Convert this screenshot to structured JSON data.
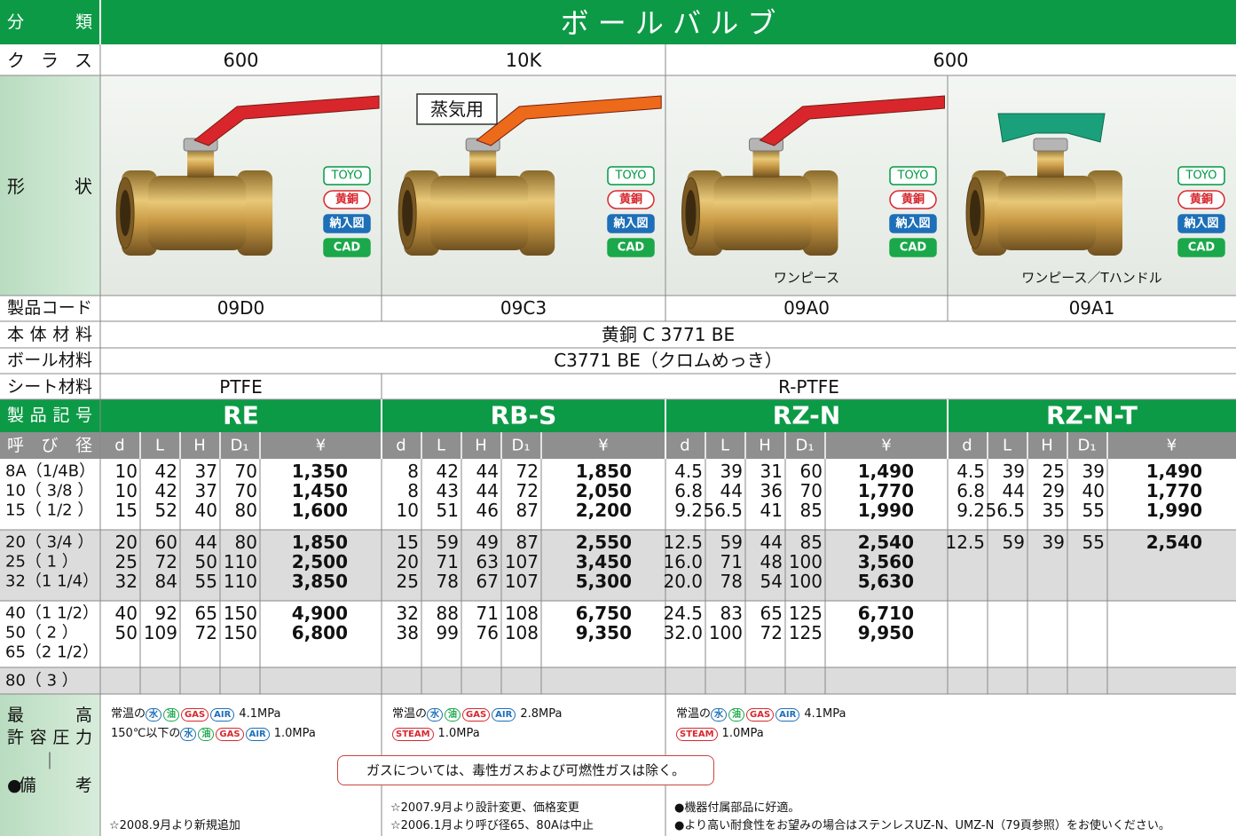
{
  "header": {
    "label": "分　　類",
    "title": "ボ ー ル バ ル ブ"
  },
  "class_row": {
    "label": "ク　ラ　ス",
    "values": [
      "600",
      "10K",
      "600"
    ]
  },
  "shape": {
    "label": "形　　状",
    "steam_note": "蒸気用",
    "badges": [
      {
        "text": "TOYO",
        "color": "#009944",
        "filled": false
      },
      {
        "text": "黄銅",
        "color": "#d7282f",
        "filled": false
      },
      {
        "text": "納入図",
        "color": "#1d6fb8",
        "filled": true
      },
      {
        "text": "CAD",
        "color": "#1aa84a",
        "filled": true
      }
    ]
  },
  "product_code_label": "製品コード",
  "body_material": {
    "label": "本 体 材 料",
    "value": "黄銅 C 3771 BE"
  },
  "ball_material": {
    "label": "ボール材料",
    "value": "C3771 BE（クロムめっき）"
  },
  "seat_material": {
    "label": "シート材料",
    "values": [
      "PTFE",
      "R-PTFE"
    ]
  },
  "symbol_label": "製 品 記 号",
  "size_label": "呼 び 径",
  "columns": [
    "d",
    "L",
    "H",
    "D₁",
    "¥"
  ],
  "sizes": [
    "8A（1/4B）",
    "10（ 3/8 ）",
    "15（ 1/2 ）",
    "20（ 3/4 ）",
    "25（  1  ）",
    "32（1 1/4）",
    "40（1 1/2）",
    "50（  2  ）",
    "65（2 1/2）",
    "80（  3  ）"
  ],
  "products": [
    {
      "code": "09D0",
      "symbol": "RE",
      "handle_color": "#d8262c",
      "rows": [
        [
          "10",
          "42",
          "37",
          "70",
          "1,350"
        ],
        [
          "10",
          "42",
          "37",
          "70",
          "1,450"
        ],
        [
          "15",
          "52",
          "40",
          "80",
          "1,600"
        ],
        [
          "20",
          "60",
          "44",
          "80",
          "1,850"
        ],
        [
          "25",
          "72",
          "50",
          "110",
          "2,500"
        ],
        [
          "32",
          "84",
          "55",
          "110",
          "3,850"
        ],
        [
          "40",
          "92",
          "65",
          "150",
          "4,900"
        ],
        [
          "50",
          "109",
          "72",
          "150",
          "6,800"
        ]
      ]
    },
    {
      "code": "09C3",
      "symbol": "RB-S",
      "handle_color": "#ec6a1a",
      "rows": [
        [
          "8",
          "42",
          "44",
          "72",
          "1,850"
        ],
        [
          "8",
          "43",
          "44",
          "72",
          "2,050"
        ],
        [
          "10",
          "51",
          "46",
          "87",
          "2,200"
        ],
        [
          "15",
          "59",
          "49",
          "87",
          "2,550"
        ],
        [
          "20",
          "71",
          "63",
          "107",
          "3,450"
        ],
        [
          "25",
          "78",
          "67",
          "107",
          "5,300"
        ],
        [
          "32",
          "88",
          "71",
          "108",
          "6,750"
        ],
        [
          "38",
          "99",
          "76",
          "108",
          "9,350"
        ]
      ]
    },
    {
      "code": "09A0",
      "symbol": "RZ-N",
      "handle_color": "#d8262c",
      "caption": "ワンピース",
      "rows": [
        [
          "4.5",
          "39",
          "31",
          "60",
          "1,490"
        ],
        [
          "6.8",
          "44",
          "36",
          "70",
          "1,770"
        ],
        [
          "9.2",
          "56.5",
          "41",
          "85",
          "1,990"
        ],
        [
          "12.5",
          "59",
          "44",
          "85",
          "2,540"
        ],
        [
          "16.0",
          "71",
          "48",
          "100",
          "3,560"
        ],
        [
          "20.0",
          "78",
          "54",
          "100",
          "5,630"
        ],
        [
          "24.5",
          "83",
          "65",
          "125",
          "6,710"
        ],
        [
          "32.0",
          "100",
          "72",
          "125",
          "9,950"
        ]
      ]
    },
    {
      "code": "09A1",
      "symbol": "RZ-N-T",
      "handle_color": "#1aa07a",
      "caption": "ワンピース／Tハンドル",
      "rows": [
        [
          "4.5",
          "39",
          "25",
          "39",
          "1,490"
        ],
        [
          "6.8",
          "44",
          "29",
          "40",
          "1,770"
        ],
        [
          "9.2",
          "56.5",
          "35",
          "55",
          "1,990"
        ],
        [
          "12.5",
          "59",
          "39",
          "55",
          "2,540"
        ]
      ]
    }
  ],
  "pressure_label": [
    "最　　　高",
    "許 容 圧 力"
  ],
  "divider": "｜",
  "remarks_label": "●備　　　考",
  "pressure": [
    [
      {
        "text": "常温の",
        "icons": [
          {
            "label": "水",
            "color": "#1d6fb8"
          },
          {
            "label": "油",
            "color": "#1aa84a"
          },
          {
            "label": "GAS",
            "color": "#d7282f"
          },
          {
            "label": "AIR",
            "color": "#1d6fb8"
          }
        ],
        "value": "4.1MPa"
      },
      {
        "text": "150℃以下の",
        "icons": [
          {
            "label": "水",
            "color": "#1d6fb8"
          },
          {
            "label": "油",
            "color": "#1aa84a"
          },
          {
            "label": "GAS",
            "color": "#d7282f"
          },
          {
            "label": "AIR",
            "color": "#1d6fb8"
          }
        ],
        "value": "1.0MPa"
      }
    ],
    [
      {
        "text": "常温の",
        "icons": [
          {
            "label": "水",
            "color": "#1d6fb8"
          },
          {
            "label": "油",
            "color": "#1aa84a"
          },
          {
            "label": "GAS",
            "color": "#d7282f"
          },
          {
            "label": "AIR",
            "color": "#1d6fb8"
          }
        ],
        "value": "2.8MPa"
      },
      {
        "icons": [
          {
            "label": "STEAM",
            "color": "#d7282f"
          }
        ],
        "value": "1.0MPa"
      }
    ],
    [
      {
        "text": "常温の",
        "icons": [
          {
            "label": "水",
            "color": "#1d6fb8"
          },
          {
            "label": "油",
            "color": "#1aa84a"
          },
          {
            "label": "GAS",
            "color": "#d7282f"
          },
          {
            "label": "AIR",
            "color": "#1d6fb8"
          }
        ],
        "value": "4.1MPa"
      },
      {
        "icons": [
          {
            "label": "STEAM",
            "color": "#d7282f"
          }
        ],
        "value": "1.0MPa"
      }
    ]
  ],
  "gas_note": "ガスについては、毒性ガスおよび可燃性ガスは除く。",
  "remarks": [
    [
      "☆2008.9月より新規追加"
    ],
    [
      "☆2007.9月より設計変更、価格変更",
      "☆2006.1月より呼び径65、80Aは中止"
    ],
    [
      "●機器付属部品に好適。",
      "●より高い耐食性をお望みの場合はステンレスUZ-N、UMZ-N（79頁参照）をお使いください。"
    ]
  ]
}
